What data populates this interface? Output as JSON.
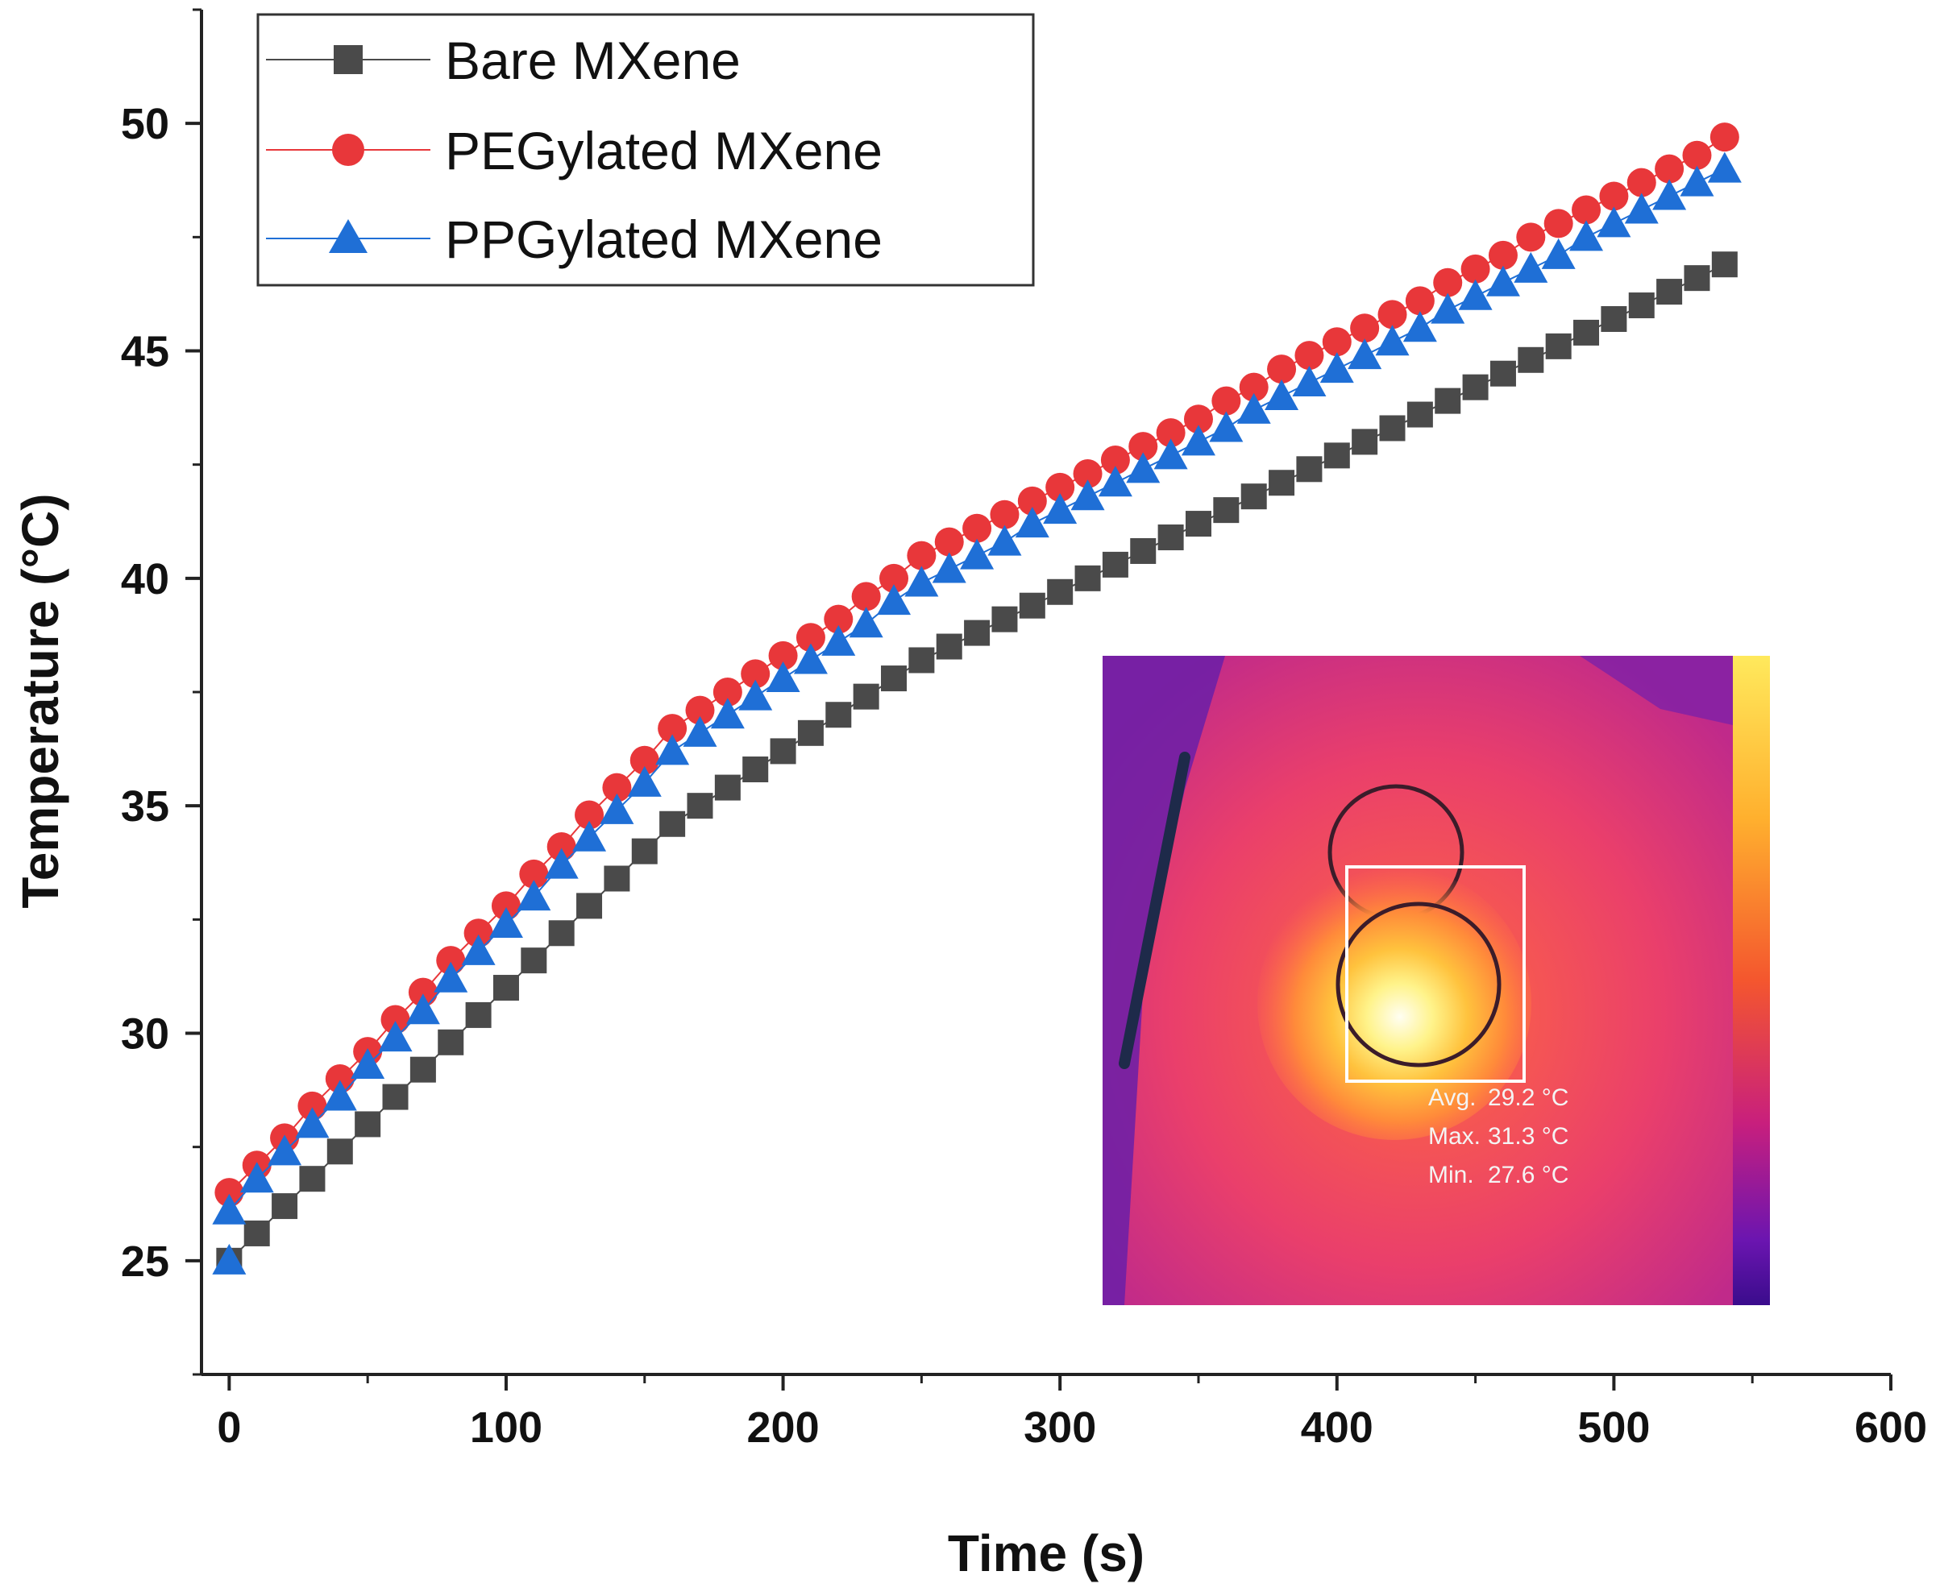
{
  "chart_data": {
    "type": "line",
    "xlabel": "Time (s)",
    "ylabel": "Temperature (°C)",
    "xlim": [
      -10,
      600
    ],
    "ylim": [
      22.5,
      52.5
    ],
    "xticks": [
      0,
      100,
      200,
      300,
      400,
      500,
      600
    ],
    "yticks": [
      25,
      30,
      35,
      40,
      45,
      50
    ],
    "legend_position": "top-left",
    "x": [
      0,
      10,
      20,
      30,
      40,
      50,
      60,
      70,
      80,
      90,
      100,
      110,
      120,
      130,
      140,
      150,
      160,
      170,
      180,
      190,
      200,
      210,
      220,
      230,
      240,
      250,
      260,
      270,
      280,
      290,
      300,
      310,
      320,
      330,
      340,
      350,
      360,
      370,
      380,
      390,
      400,
      410,
      420,
      430,
      440,
      450,
      460,
      470,
      480,
      490,
      500,
      510,
      520,
      530,
      540
    ],
    "series": [
      {
        "name": "Bare MXene",
        "color": "#4a4a4a",
        "marker": "square",
        "values": [
          25.0,
          25.6,
          26.2,
          26.8,
          27.4,
          28.0,
          28.6,
          29.2,
          29.8,
          30.4,
          31.0,
          31.6,
          32.2,
          32.8,
          33.4,
          34.0,
          34.6,
          35.0,
          35.4,
          35.8,
          36.2,
          36.6,
          37.0,
          37.4,
          37.8,
          38.2,
          38.5,
          38.8,
          39.1,
          39.4,
          39.7,
          40.0,
          40.3,
          40.6,
          40.9,
          41.2,
          41.5,
          41.8,
          42.1,
          42.4,
          42.7,
          43.0,
          43.3,
          43.6,
          43.9,
          44.2,
          44.5,
          44.8,
          45.1,
          45.4,
          45.7,
          46.0,
          46.3,
          46.6,
          46.9
        ]
      },
      {
        "name": "PEGylated MXene",
        "color": "#e8373a",
        "marker": "circle",
        "values": [
          26.5,
          27.1,
          27.7,
          28.4,
          29.0,
          29.6,
          30.3,
          30.9,
          31.6,
          32.2,
          32.8,
          33.5,
          34.1,
          34.8,
          35.4,
          36.0,
          36.7,
          37.1,
          37.5,
          37.9,
          38.3,
          38.7,
          39.1,
          39.6,
          40.0,
          40.5,
          40.8,
          41.1,
          41.4,
          41.7,
          42.0,
          42.3,
          42.6,
          42.9,
          43.2,
          43.5,
          43.9,
          44.2,
          44.6,
          44.9,
          45.2,
          45.5,
          45.8,
          46.1,
          46.5,
          46.8,
          47.1,
          47.5,
          47.8,
          48.1,
          48.4,
          48.7,
          49.0,
          49.3,
          49.7
        ]
      },
      {
        "name": "PPGylated MXene",
        "color": "#1f6fd6",
        "marker": "triangle",
        "values": [
          26.1,
          26.8,
          27.4,
          28.0,
          28.6,
          29.3,
          29.9,
          30.5,
          31.2,
          31.8,
          32.4,
          33.0,
          33.7,
          34.3,
          34.9,
          35.5,
          36.2,
          36.6,
          37.0,
          37.4,
          37.8,
          38.2,
          38.6,
          39.0,
          39.5,
          39.9,
          40.2,
          40.5,
          40.8,
          41.2,
          41.5,
          41.8,
          42.1,
          42.4,
          42.7,
          43.0,
          43.3,
          43.7,
          44.0,
          44.3,
          44.6,
          44.9,
          45.2,
          45.5,
          45.9,
          46.2,
          46.5,
          46.8,
          47.1,
          47.5,
          47.8,
          48.1,
          48.4,
          48.7,
          49.0
        ]
      }
    ],
    "extra_points": [
      {
        "series": "PPGylated MXene",
        "x": 0,
        "y": 25.0
      }
    ],
    "inset": {
      "type": "thermal-image",
      "readouts": [
        {
          "label": "Avg.",
          "value": "29.2 °C"
        },
        {
          "label": "Max.",
          "value": "31.3 °C"
        },
        {
          "label": "Min.",
          "value": "27.6 °C"
        }
      ]
    }
  }
}
